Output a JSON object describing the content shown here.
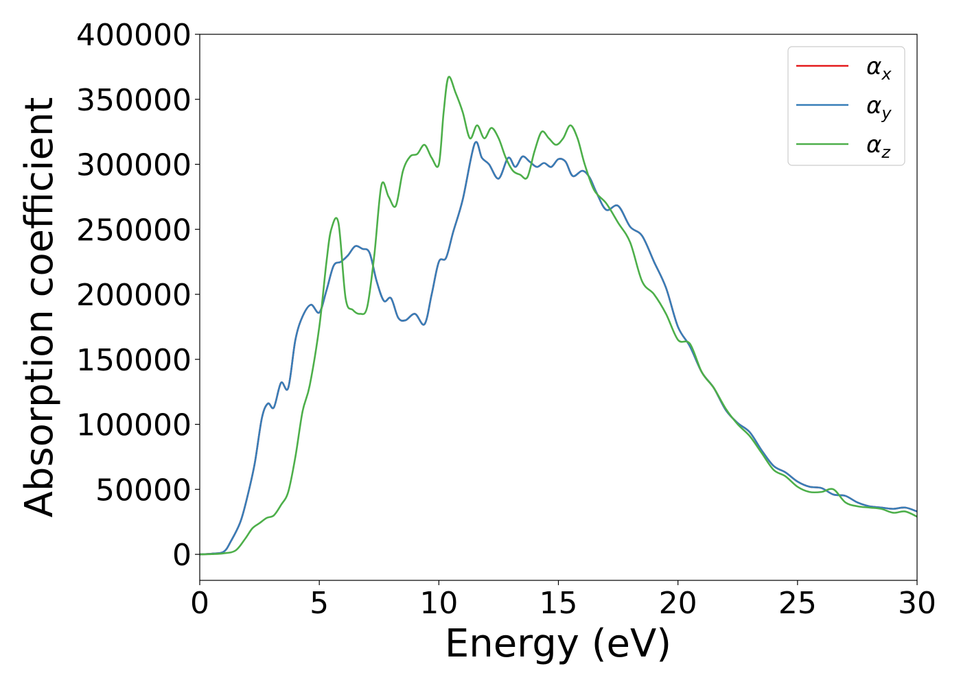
{
  "chart_data": {
    "type": "line",
    "title": "",
    "xlabel": "Energy (eV)",
    "ylabel": "Absorption coefficient",
    "xlim": [
      0,
      30
    ],
    "ylim": [
      -20000,
      400000
    ],
    "xticks": [
      0,
      5,
      10,
      15,
      20,
      25,
      30
    ],
    "yticks": [
      0,
      50000,
      100000,
      150000,
      200000,
      250000,
      300000,
      350000,
      400000
    ],
    "grid": false,
    "legend_position": "top-right",
    "series": [
      {
        "name": "α_x",
        "label_main": "α",
        "label_sub": "x",
        "color": "#e41a1c",
        "x": [
          0,
          0.5,
          1.0,
          1.3,
          1.7,
          2.0,
          2.3,
          2.6,
          2.85,
          3.1,
          3.4,
          3.7,
          4.0,
          4.3,
          4.65,
          5.0,
          5.3,
          5.6,
          5.9,
          6.2,
          6.5,
          6.8,
          7.1,
          7.4,
          7.7,
          8.0,
          8.3,
          8.6,
          9.0,
          9.4,
          9.7,
          10.0,
          10.3,
          10.6,
          11.0,
          11.5,
          11.8,
          12.1,
          12.5,
          12.9,
          13.2,
          13.5,
          13.8,
          14.1,
          14.4,
          14.7,
          15.0,
          15.3,
          15.6,
          16.0,
          16.3,
          16.6,
          17.0,
          17.5,
          18.0,
          18.5,
          19.0,
          19.5,
          20.0,
          20.5,
          21.0,
          21.5,
          22.0,
          22.5,
          23.0,
          23.5,
          24.0,
          24.5,
          25.0,
          25.5,
          26.0,
          26.5,
          27.0,
          27.5,
          28.0,
          28.5,
          29.0,
          29.5,
          30.0
        ],
        "y": [
          0,
          500,
          2000,
          10000,
          25000,
          45000,
          70000,
          105000,
          116000,
          113000,
          132000,
          128000,
          165000,
          183000,
          192000,
          186000,
          203000,
          222000,
          225000,
          230000,
          237000,
          235000,
          232000,
          210000,
          195000,
          197000,
          182000,
          180000,
          185000,
          177000,
          200000,
          225000,
          228000,
          248000,
          273000,
          316000,
          305000,
          300000,
          289000,
          305000,
          298000,
          306000,
          302000,
          298000,
          301000,
          298000,
          304000,
          302000,
          291000,
          295000,
          290000,
          278000,
          265000,
          268000,
          252000,
          245000,
          225000,
          205000,
          175000,
          160000,
          140000,
          128000,
          111000,
          101000,
          94000,
          80000,
          68000,
          63000,
          56000,
          52000,
          51000,
          46000,
          45000,
          40000,
          37000,
          36000,
          35000,
          36000,
          33000
        ]
      },
      {
        "name": "α_y",
        "label_main": "α",
        "label_sub": "y",
        "color": "#377eb8",
        "x": [
          0,
          0.5,
          1.0,
          1.3,
          1.7,
          2.0,
          2.3,
          2.6,
          2.85,
          3.1,
          3.4,
          3.7,
          4.0,
          4.3,
          4.65,
          5.0,
          5.3,
          5.6,
          5.9,
          6.2,
          6.5,
          6.8,
          7.1,
          7.4,
          7.7,
          8.0,
          8.3,
          8.6,
          9.0,
          9.4,
          9.7,
          10.0,
          10.3,
          10.6,
          11.0,
          11.5,
          11.8,
          12.1,
          12.5,
          12.9,
          13.2,
          13.5,
          13.8,
          14.1,
          14.4,
          14.7,
          15.0,
          15.3,
          15.6,
          16.0,
          16.3,
          16.6,
          17.0,
          17.5,
          18.0,
          18.5,
          19.0,
          19.5,
          20.0,
          20.5,
          21.0,
          21.5,
          22.0,
          22.5,
          23.0,
          23.5,
          24.0,
          24.5,
          25.0,
          25.5,
          26.0,
          26.5,
          27.0,
          27.5,
          28.0,
          28.5,
          29.0,
          29.5,
          30.0
        ],
        "y": [
          0,
          500,
          2000,
          10000,
          25000,
          45000,
          70000,
          105000,
          116000,
          113000,
          132000,
          128000,
          165000,
          183000,
          192000,
          186000,
          203000,
          222000,
          225000,
          230000,
          237000,
          235000,
          232000,
          210000,
          195000,
          197000,
          182000,
          180000,
          185000,
          177000,
          200000,
          225000,
          228000,
          248000,
          273000,
          316000,
          305000,
          300000,
          289000,
          305000,
          298000,
          306000,
          302000,
          298000,
          301000,
          298000,
          304000,
          302000,
          291000,
          295000,
          290000,
          278000,
          265000,
          268000,
          252000,
          245000,
          225000,
          205000,
          175000,
          160000,
          140000,
          128000,
          111000,
          101000,
          94000,
          80000,
          68000,
          63000,
          56000,
          52000,
          51000,
          46000,
          45000,
          40000,
          37000,
          36000,
          35000,
          36000,
          33000
        ]
      },
      {
        "name": "α_z",
        "label_main": "α",
        "label_sub": "z",
        "color": "#4daf4a",
        "x": [
          0,
          0.5,
          1.0,
          1.5,
          1.9,
          2.2,
          2.5,
          2.8,
          3.1,
          3.4,
          3.7,
          4.0,
          4.3,
          4.6,
          5.0,
          5.3,
          5.5,
          5.8,
          6.1,
          6.4,
          6.7,
          7.0,
          7.3,
          7.6,
          7.9,
          8.2,
          8.5,
          8.8,
          9.1,
          9.4,
          9.7,
          10.0,
          10.2,
          10.4,
          10.7,
          11.0,
          11.3,
          11.6,
          11.9,
          12.2,
          12.5,
          12.8,
          13.1,
          13.4,
          13.7,
          14.0,
          14.3,
          14.6,
          14.9,
          15.2,
          15.5,
          15.8,
          16.1,
          16.5,
          17.0,
          17.5,
          18.0,
          18.5,
          19.0,
          19.5,
          20.0,
          20.5,
          21.0,
          21.5,
          22.0,
          22.5,
          23.0,
          23.5,
          24.0,
          24.5,
          25.0,
          25.5,
          26.0,
          26.5,
          27.0,
          27.5,
          28.0,
          28.5,
          29.0,
          29.5,
          30.0
        ],
        "y": [
          0,
          200,
          800,
          3000,
          12000,
          20000,
          24000,
          28000,
          30000,
          38000,
          48000,
          75000,
          110000,
          130000,
          175000,
          225000,
          250000,
          255000,
          197000,
          188000,
          185000,
          190000,
          230000,
          284000,
          275000,
          268000,
          295000,
          306000,
          308000,
          315000,
          305000,
          300000,
          340000,
          367000,
          355000,
          340000,
          320000,
          330000,
          320000,
          328000,
          320000,
          305000,
          295000,
          292000,
          290000,
          310000,
          325000,
          320000,
          315000,
          320000,
          330000,
          320000,
          300000,
          280000,
          270000,
          255000,
          240000,
          210000,
          200000,
          185000,
          165000,
          162000,
          140000,
          128000,
          112000,
          100000,
          91000,
          78000,
          65000,
          60000,
          52000,
          48000,
          48000,
          50000,
          40000,
          37000,
          36000,
          35000,
          32000,
          33000,
          29000
        ]
      }
    ]
  }
}
